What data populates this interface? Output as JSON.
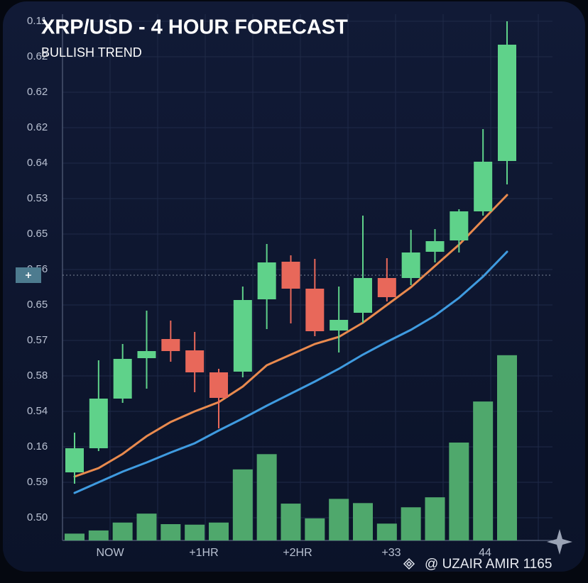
{
  "chart_data": {
    "type": "candlestick",
    "title": "XRP/USD - 4 HOUR FORECAST",
    "subtitle": "BULLISH TREND",
    "watermark": "@ UZAIR AMIR 1165",
    "x_labels": [
      "NOW",
      "+1HR",
      "+2HR",
      "+33",
      "44"
    ],
    "ylim": [
      -0.64,
      14.2
    ],
    "yticks": [
      {
        "value": 14,
        "label": "0.11"
      },
      {
        "value": 13,
        "label": "0.62"
      },
      {
        "value": 12,
        "label": "0.62"
      },
      {
        "value": 11,
        "label": "0.62"
      },
      {
        "value": 10,
        "label": "0.64"
      },
      {
        "value": 9,
        "label": "0.53"
      },
      {
        "value": 8,
        "label": "0.65"
      },
      {
        "value": 7,
        "label": "0.56"
      },
      {
        "value": 6,
        "label": "0.65"
      },
      {
        "value": 5,
        "label": "0.57"
      },
      {
        "value": 4,
        "label": "0.58"
      },
      {
        "value": 3,
        "label": "0.54"
      },
      {
        "value": 2,
        "label": "0.16"
      },
      {
        "value": 1,
        "label": "0.59"
      },
      {
        "value": 0,
        "label": "0.50"
      }
    ],
    "grid": true,
    "reference_line": 6.84,
    "up_color": "#5fd28a",
    "down_color": "#e8685a",
    "open": [
      1.28,
      1.96,
      3.36,
      4.5,
      5.04,
      4.72,
      4.1,
      4.12,
      6.16,
      7.22,
      6.46,
      5.28,
      5.78,
      6.76,
      6.76,
      7.5,
      7.82,
      8.64,
      10.06
    ],
    "close": [
      1.96,
      3.36,
      4.48,
      4.7,
      4.7,
      4.1,
      3.38,
      6.14,
      7.2,
      6.46,
      5.26,
      5.58,
      6.76,
      6.22,
      7.48,
      7.8,
      8.64,
      10.04,
      13.34
    ],
    "high": [
      2.4,
      4.44,
      4.9,
      5.84,
      5.56,
      5.24,
      4.2,
      6.52,
      7.72,
      7.4,
      7.3,
      6.52,
      8.52,
      7.32,
      8.12,
      8.14,
      8.7,
      10.96,
      14.0
    ],
    "low": [
      0.96,
      1.88,
      3.24,
      3.64,
      4.4,
      3.54,
      2.52,
      3.96,
      5.32,
      5.48,
      5.12,
      4.66,
      5.5,
      6.1,
      6.56,
      7.2,
      7.48,
      8.52,
      9.4
    ],
    "moving_averages": [
      {
        "color": "#e98a4e",
        "values": [
          1.16,
          1.4,
          1.8,
          2.3,
          2.7,
          3.0,
          3.26,
          3.7,
          4.3,
          4.6,
          4.9,
          5.1,
          5.5,
          6.0,
          6.5,
          7.1,
          7.7,
          8.4,
          9.1
        ]
      },
      {
        "color": "#3f9be0",
        "values": [
          0.7,
          1.0,
          1.3,
          1.56,
          1.84,
          2.1,
          2.46,
          2.8,
          3.16,
          3.5,
          3.84,
          4.2,
          4.6,
          4.96,
          5.3,
          5.7,
          6.2,
          6.8,
          7.5
        ]
      }
    ],
    "volume": {
      "color": "#4fa86c",
      "y2lim": [
        0,
        100
      ],
      "values": [
        1.3,
        1.9,
        3.4,
        5.1,
        3.1,
        3.0,
        3.4,
        13.5,
        16.4,
        7.0,
        4.2,
        7.9,
        7.1,
        3.2,
        6.3,
        8.2,
        18.6,
        26.4,
        35.2
      ]
    }
  }
}
